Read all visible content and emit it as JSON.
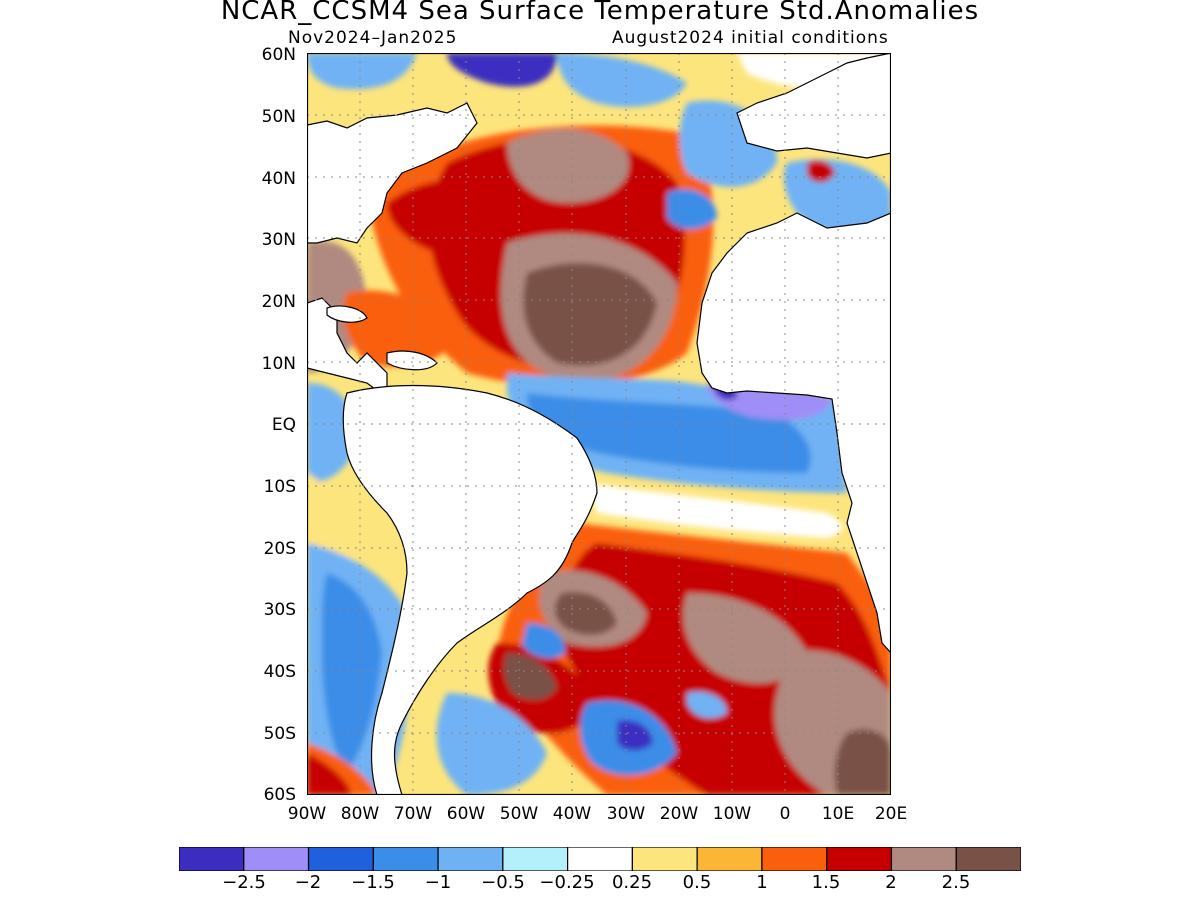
{
  "title": "NCAR_CCSM4 Sea Surface Temperature Std.Anomalies",
  "subtitle_left": "Nov2024–Jan2025",
  "subtitle_right": "August2024 initial conditions",
  "lat_labels": [
    "60N",
    "50N",
    "40N",
    "30N",
    "20N",
    "10N",
    "EQ",
    "10S",
    "20S",
    "30S",
    "40S",
    "50S",
    "60S"
  ],
  "lon_labels": [
    "90W",
    "80W",
    "70W",
    "60W",
    "50W",
    "40W",
    "30W",
    "20W",
    "10W",
    "0",
    "10E",
    "20E"
  ],
  "map": {
    "lon_range": [
      -90,
      20
    ],
    "lat_range": [
      -60,
      60
    ],
    "grid": true,
    "land_color": "#ffffff",
    "coast_color": "#000000"
  },
  "colorbar": {
    "colors": [
      "#3b2dc0",
      "#9f8ef5",
      "#1f60dc",
      "#3a8de8",
      "#6fb2f4",
      "#b4f0fb",
      "#ffffff",
      "#fde57d",
      "#fbb635",
      "#fa5f0b",
      "#c60000",
      "#b08a80",
      "#7a5147"
    ],
    "labels": [
      "−2.5",
      "−2",
      "−1.5",
      "−1",
      "−0.5",
      "−0.25",
      "0.25",
      "0.5",
      "1",
      "1.5",
      "2",
      "2.5"
    ]
  }
}
